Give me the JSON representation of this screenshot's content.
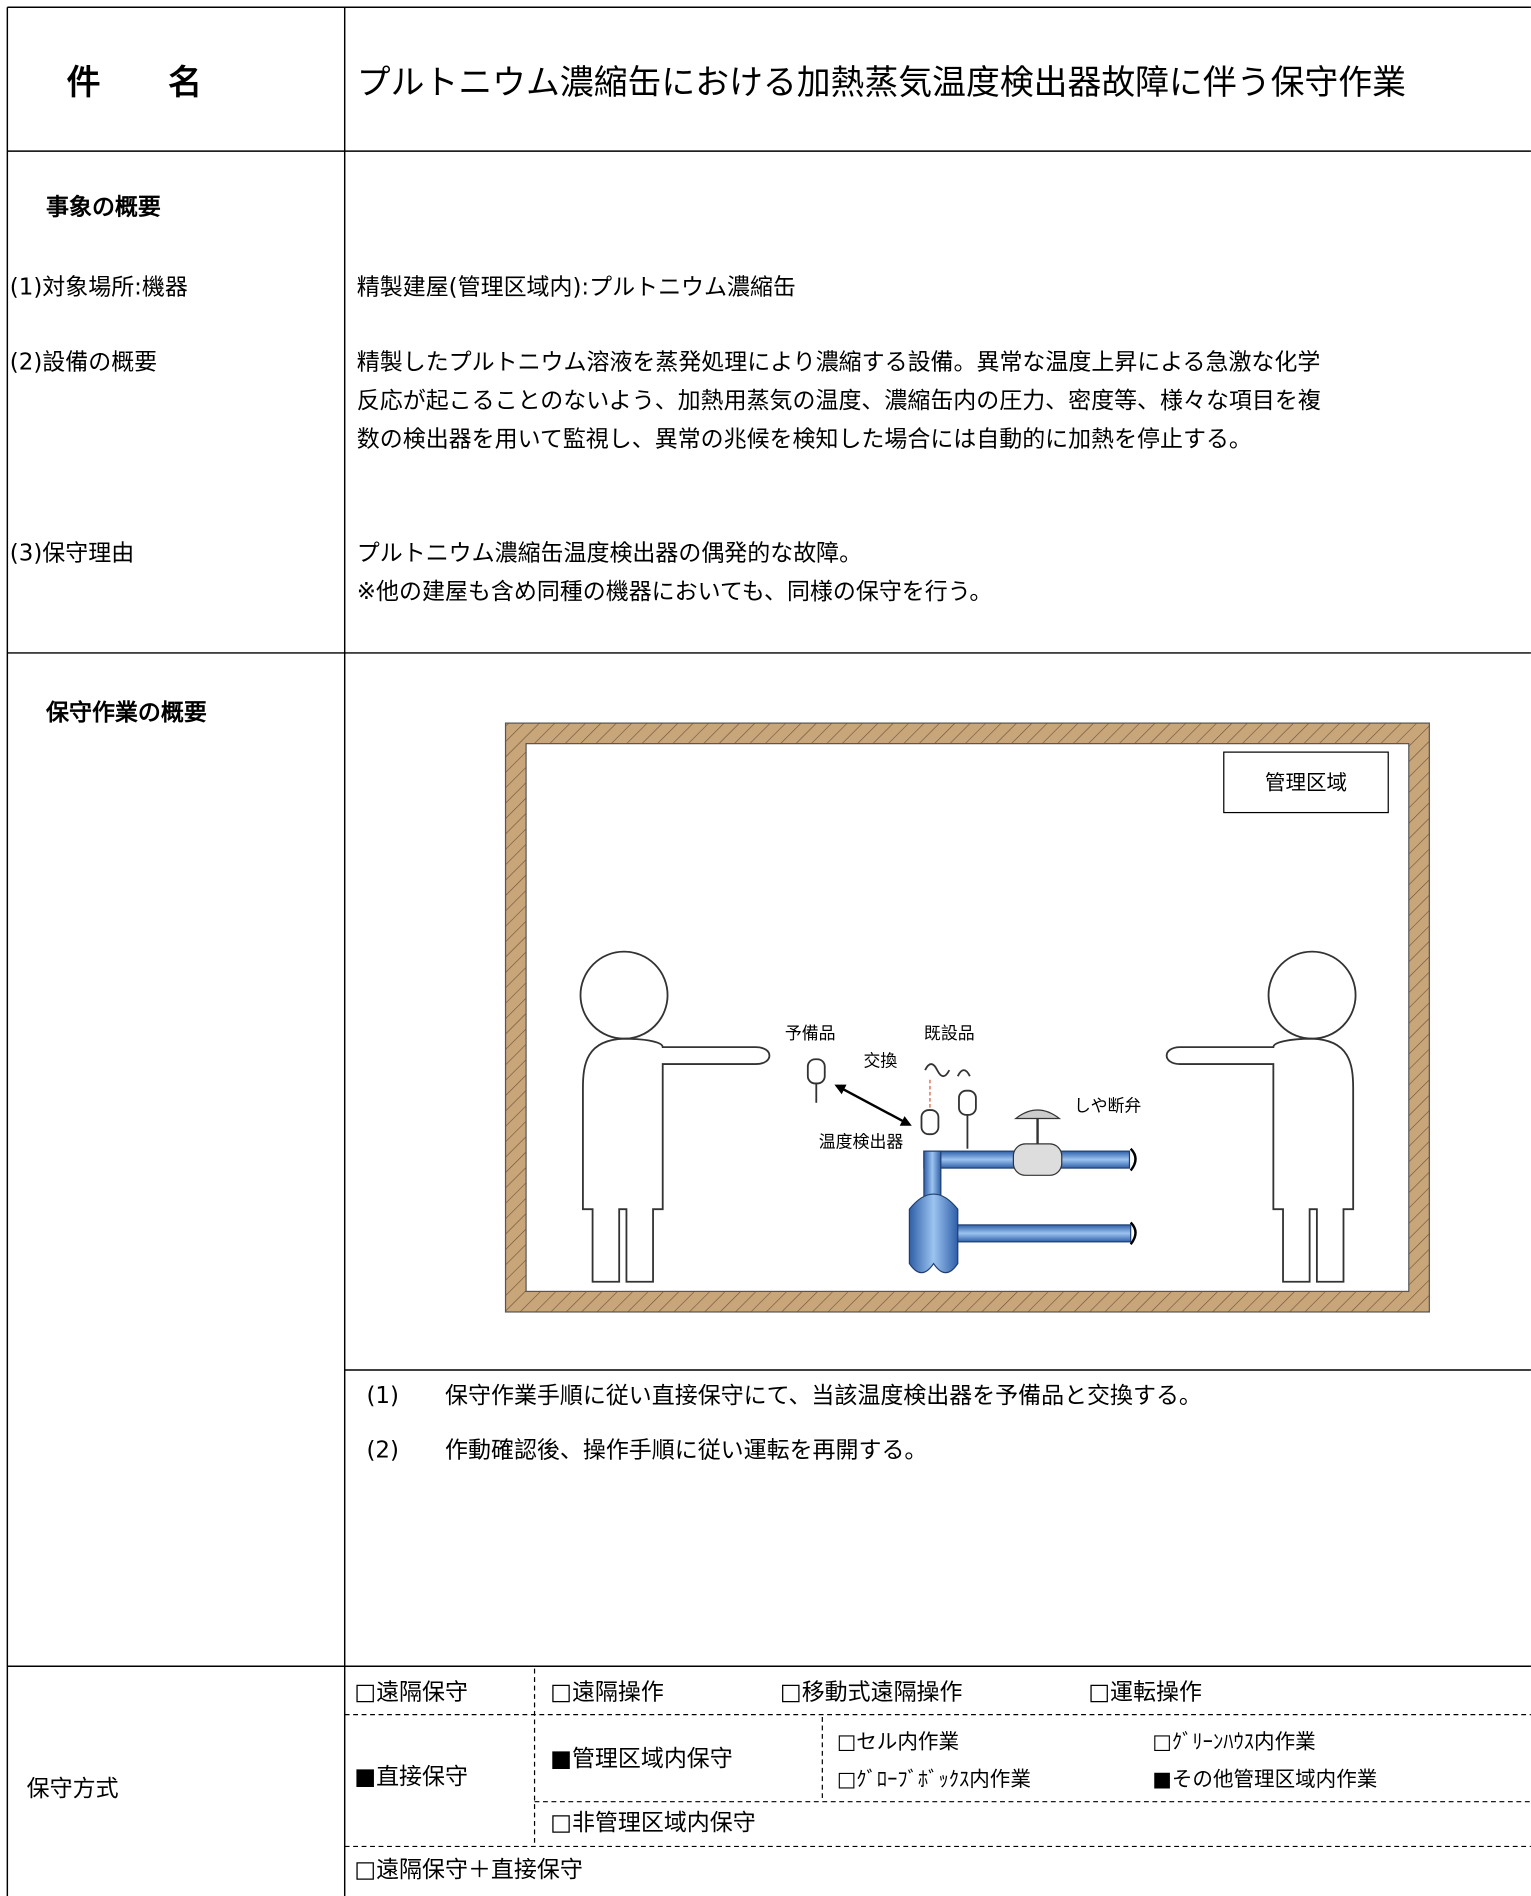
{
  "header": {
    "label": "件　　名",
    "title": "プルトニウム濃縮缶における加熱蒸気温度検出器故障に伴う保守作業"
  },
  "overview": {
    "heading": "事象の概要",
    "items": [
      {
        "label": "(1)対象場所:機器",
        "lines": [
          "精製建屋(管理区域内):プルトニウム濃縮缶"
        ]
      },
      {
        "label": "(2)設備の概要",
        "lines": [
          "精製したプルトニウム溶液を蒸発処理により濃縮する設備。異常な温度上昇による急激な化学",
          "反応が起こることのないよう、加熱用蒸気の温度、濃縮缶内の圧力、密度等、様々な項目を複",
          "数の検出器を用いて監視し、異常の兆候を検知した場合には自動的に加熱を停止する。"
        ]
      },
      {
        "label": "(3)保守理由",
        "lines": [
          "プルトニウム濃縮缶温度検出器の偶発的な故障。",
          "※他の建屋も含め同種の機器においても、同様の保守を行う。"
        ]
      }
    ]
  },
  "work": {
    "heading": "保守作業の概要",
    "diagram": {
      "area": "管理区域",
      "spare": "予備品",
      "existing": "既設品",
      "exchange": "交換",
      "valve": "しや断弁",
      "detector": "温度検出器"
    },
    "steps": [
      {
        "num": "(1)",
        "text": "保守作業手順に従い直接保守にて、当該温度検出器を予備品と交換する。"
      },
      {
        "num": "(2)",
        "text": "作動確認後、操作手順に従い運転を再開する。"
      }
    ]
  },
  "method": {
    "label": "保守方式",
    "remote": "□遠隔保守",
    "remote_options": [
      "□遠隔操作",
      "□移動式遠隔操作",
      "□運転操作"
    ],
    "direct": "■直接保守",
    "controlled": "■管理区域内保守",
    "controlled_options": [
      "□セル内作業",
      "□ｸﾞﾘｰﾝﾊｳｽ内作業",
      "□ｸﾞﾛｰﾌﾞﾎﾞｯｸｽ内作業",
      "■その他管理区域内作業"
    ],
    "uncontrolled": "□非管理区域内保守",
    "combined": "□遠隔保守＋直接保守"
  }
}
